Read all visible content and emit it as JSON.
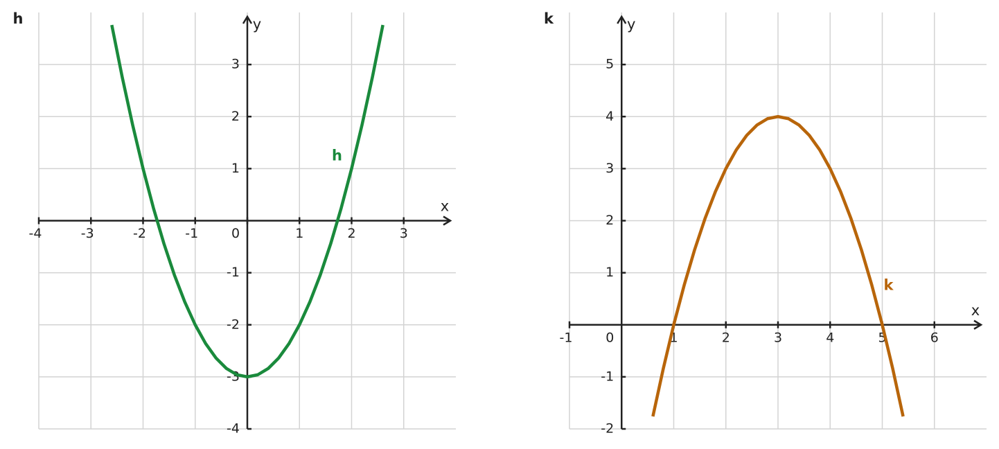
{
  "chart_data": [
    {
      "type": "line",
      "title": "h",
      "x_label": "x",
      "y_label": "y",
      "xlim": [
        -4,
        4
      ],
      "ylim": [
        -4,
        4
      ],
      "xticks": [
        -4,
        -3,
        -2,
        -1,
        0,
        1,
        2,
        3
      ],
      "yticks": [
        -4,
        -3,
        -2,
        -1,
        1,
        2,
        3
      ],
      "grid": true,
      "x": [
        -2.6,
        -2.4,
        -2.2,
        -2,
        -1.8,
        -1.6,
        -1.4,
        -1.2,
        -1,
        -0.8,
        -0.6,
        -0.4,
        -0.2,
        0,
        0.2,
        0.4,
        0.6,
        0.8,
        1,
        1.2,
        1.4,
        1.6,
        1.8,
        2,
        2.2,
        2.4,
        2.6
      ],
      "series": [
        {
          "name": "h",
          "color": "#1a8a3c",
          "label_at": [
            1.72,
            1.24
          ],
          "values": [
            3.76,
            2.76,
            1.84,
            1,
            0.24,
            -0.44,
            -1.04,
            -1.56,
            -2,
            -2.36,
            -2.64,
            -2.84,
            -2.96,
            -3,
            -2.96,
            -2.84,
            -2.64,
            -2.36,
            -2,
            -1.56,
            -1.04,
            -0.44,
            0.24,
            1,
            1.84,
            2.76,
            3.76
          ]
        }
      ]
    },
    {
      "type": "line",
      "title": "k",
      "x_label": "x",
      "y_label": "y",
      "xlim": [
        -1,
        7
      ],
      "ylim": [
        -2,
        6
      ],
      "xticks": [
        -1,
        0,
        1,
        2,
        3,
        4,
        5,
        6
      ],
      "yticks": [
        -2,
        -1,
        1,
        2,
        3,
        4,
        5
      ],
      "grid": true,
      "x": [
        0.6,
        0.8,
        1,
        1.2,
        1.4,
        1.6,
        1.8,
        2,
        2.2,
        2.4,
        2.6,
        2.8,
        3,
        3.2,
        3.4,
        3.6,
        3.8,
        4,
        4.2,
        4.4,
        4.6,
        4.8,
        5,
        5.2,
        5.4
      ],
      "series": [
        {
          "name": "k",
          "color": "#b8650a",
          "label_at": [
            5.12,
            0.75
          ],
          "values": [
            -1.76,
            -0.84,
            0,
            0.76,
            1.44,
            2.04,
            2.56,
            3,
            3.36,
            3.64,
            3.84,
            3.96,
            4,
            3.96,
            3.84,
            3.64,
            3.36,
            3,
            2.56,
            2.04,
            1.44,
            0.76,
            0,
            -0.84,
            -1.76
          ]
        }
      ]
    }
  ]
}
